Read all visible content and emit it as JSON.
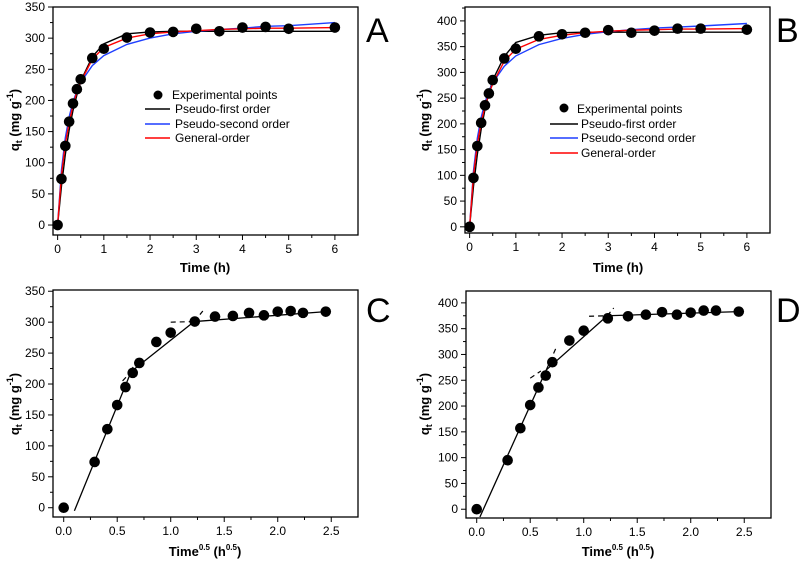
{
  "chart_data": [
    {
      "panel": "A",
      "type": "scatter+line",
      "xlabel": {
        "base": "Time (h)"
      },
      "ylabel": {
        "base": "q",
        "sub": "t",
        "unit": " (mg g",
        "sup": "-1",
        "close": ")"
      },
      "xlim": [
        -0.1,
        6.5
      ],
      "ylim": [
        -16,
        350
      ],
      "xticks": [
        "0",
        "1",
        "2",
        "3",
        "4",
        "5",
        "6"
      ],
      "xtick_values": [
        0,
        1,
        2,
        3,
        4,
        5,
        6
      ],
      "yticks": [
        "0",
        "50",
        "100",
        "150",
        "200",
        "250",
        "300",
        "350"
      ],
      "ytick_values": [
        0,
        50,
        100,
        150,
        200,
        250,
        300,
        350
      ],
      "legend": {
        "placement": "center",
        "entries": [
          "Experimental points",
          "Pseudo-first order",
          "Pseudo-second order",
          "General-order"
        ]
      },
      "x": [
        0,
        0.083,
        0.167,
        0.25,
        0.333,
        0.417,
        0.5,
        0.75,
        1,
        1.5,
        2,
        2.5,
        3,
        3.5,
        4,
        4.5,
        5,
        6
      ],
      "points": [
        0,
        74,
        127,
        166,
        195,
        218,
        234,
        268,
        283,
        301,
        309,
        310,
        315,
        311,
        317,
        318,
        315,
        317
      ],
      "series": [
        {
          "name": "Pseudo-first order",
          "color": "#000000",
          "values": [
            0,
            63,
            113,
            153,
            184,
            209,
            231,
            270,
            291,
            307,
            310,
            311,
            311,
            311,
            311,
            311,
            311,
            311
          ]
        },
        {
          "name": "Pseudo-second order",
          "color": "#1f3fff",
          "values": [
            0,
            89,
            140,
            174,
            198,
            215,
            229,
            256,
            272,
            290,
            300,
            307,
            311,
            314,
            316,
            319,
            320,
            325
          ]
        },
        {
          "name": "General-order",
          "color": "#ff0000",
          "values": [
            0,
            80,
            130,
            165,
            192,
            214,
            230,
            266,
            285,
            300,
            307,
            310,
            312,
            314,
            315,
            316,
            316,
            317
          ]
        }
      ]
    },
    {
      "panel": "B",
      "type": "scatter+line",
      "xlabel": {
        "base": "Time (h)"
      },
      "ylabel": {
        "base": "q",
        "sub": "t",
        "unit": " (mg g",
        "sup": "-1",
        "close": ")"
      },
      "xlim": [
        -0.1,
        6.5
      ],
      "ylim": [
        -12,
        427
      ],
      "xticks": [
        "0",
        "1",
        "2",
        "3",
        "4",
        "5",
        "6"
      ],
      "xtick_values": [
        0,
        1,
        2,
        3,
        4,
        5,
        6
      ],
      "yticks": [
        "0",
        "50",
        "100",
        "150",
        "200",
        "250",
        "300",
        "350",
        "400"
      ],
      "ytick_values": [
        0,
        50,
        100,
        150,
        200,
        250,
        300,
        350,
        400
      ],
      "legend": {
        "placement": "center",
        "entries": [
          "Experimental points",
          "Pseudo-first order",
          "Pseudo-second order",
          "General-order"
        ]
      },
      "x": [
        0,
        0.083,
        0.167,
        0.25,
        0.333,
        0.417,
        0.5,
        0.75,
        1,
        1.5,
        2,
        2.5,
        3,
        3.5,
        4,
        4.5,
        5,
        6
      ],
      "points": [
        0,
        95,
        157,
        202,
        236,
        259,
        285,
        327,
        346,
        370,
        374,
        377,
        382,
        377,
        381,
        385,
        385,
        383
      ],
      "series": [
        {
          "name": "Pseudo-first order",
          "color": "#000000",
          "values": [
            0,
            79,
            140,
            190,
            228,
            260,
            285,
            331,
            358,
            372,
            377,
            378,
            378,
            378,
            378,
            378,
            378,
            378
          ]
        },
        {
          "name": "Pseudo-second order",
          "color": "#1f3fff",
          "values": [
            0,
            109,
            172,
            213,
            242,
            263,
            280,
            312,
            332,
            354,
            366,
            374,
            379,
            383,
            386,
            388,
            390,
            395
          ]
        },
        {
          "name": "General-order",
          "color": "#ff0000",
          "values": [
            0,
            100,
            160,
            203,
            234,
            258,
            278,
            322,
            345,
            364,
            372,
            377,
            380,
            382,
            383,
            384,
            384,
            385
          ]
        }
      ]
    },
    {
      "panel": "C",
      "type": "scatter+line",
      "xlabel": {
        "base": "Time",
        "sup": "0.5",
        "unit": " (h",
        "sup2": "0.5",
        "close": ")"
      },
      "ylabel": {
        "base": "q",
        "sub": "t",
        "unit": " (mg g",
        "sup": "-1",
        "close": ")"
      },
      "xlim": [
        -0.1,
        2.75
      ],
      "ylim": [
        -15,
        352
      ],
      "xticks": [
        "0.0",
        "0.5",
        "1.0",
        "1.5",
        "2.0",
        "2.5"
      ],
      "xtick_values": [
        0,
        0.5,
        1,
        1.5,
        2,
        2.5
      ],
      "yticks": [
        "0",
        "50",
        "100",
        "150",
        "200",
        "250",
        "300",
        "350"
      ],
      "ytick_values": [
        0,
        50,
        100,
        150,
        200,
        250,
        300,
        350
      ],
      "x": [
        0,
        0.289,
        0.408,
        0.5,
        0.577,
        0.645,
        0.707,
        0.866,
        1,
        1.225,
        1.414,
        1.581,
        1.732,
        1.871,
        2,
        2.121,
        2.236,
        2.449
      ],
      "points": [
        0,
        74,
        127,
        166,
        195,
        218,
        234,
        268,
        283,
        301,
        309,
        310,
        315,
        311,
        317,
        318,
        315,
        317
      ],
      "fit_lines": [
        {
          "solid": [
            [
              0.1,
              -5
            ],
            [
              0.63,
              220
            ]
          ],
          "dashed": [
            [
              0.63,
              220
            ],
            [
              0.69,
              245
            ]
          ]
        },
        {
          "solid": [
            [
              0.63,
              220
            ],
            [
              1.22,
              301
            ]
          ],
          "dashed": [
            [
              0.55,
              205
            ],
            [
              0.63,
              220
            ],
            [
              1.22,
              301
            ],
            [
              1.3,
              318
            ]
          ]
        },
        {
          "solid": [
            [
              1.22,
              301
            ],
            [
              2.45,
              317
            ]
          ],
          "dashed": [
            [
              1.0,
              300
            ],
            [
              1.22,
              301
            ]
          ]
        }
      ]
    },
    {
      "panel": "D",
      "type": "scatter+line",
      "xlabel": {
        "base": "Time",
        "sup": "0.5",
        "unit": " (h",
        "sup2": "0.5",
        "close": ")"
      },
      "ylabel": {
        "base": "q",
        "sub": "t",
        "unit": " (mg g",
        "sup": "-1",
        "close": ")"
      },
      "xlim": [
        -0.1,
        2.75
      ],
      "ylim": [
        -17,
        423
      ],
      "xticks": [
        "0.0",
        "0.5",
        "1.0",
        "1.5",
        "2.0",
        "2.5"
      ],
      "xtick_values": [
        0,
        0.5,
        1,
        1.5,
        2,
        2.5
      ],
      "yticks": [
        "0",
        "50",
        "100",
        "150",
        "200",
        "250",
        "300",
        "350",
        "400"
      ],
      "ytick_values": [
        0,
        50,
        100,
        150,
        200,
        250,
        300,
        350,
        400
      ],
      "x": [
        0,
        0.289,
        0.408,
        0.5,
        0.577,
        0.645,
        0.707,
        0.866,
        1,
        1.225,
        1.414,
        1.581,
        1.732,
        1.871,
        2,
        2.121,
        2.236,
        2.449
      ],
      "points": [
        0,
        95,
        157,
        202,
        236,
        259,
        285,
        327,
        346,
        370,
        374,
        377,
        382,
        377,
        381,
        385,
        385,
        383
      ],
      "fit_lines": [
        {
          "solid": [
            [
              0.03,
              -15
            ],
            [
              0.65,
              270
            ]
          ],
          "dashed": [
            [
              0.65,
              270
            ],
            [
              0.74,
              312
            ]
          ]
        },
        {
          "solid": [
            [
              0.65,
              270
            ],
            [
              1.22,
              375
            ]
          ],
          "dashed": [
            [
              0.5,
              254
            ],
            [
              0.6,
              268
            ],
            [
              1.22,
              375
            ],
            [
              1.28,
              390
            ]
          ]
        },
        {
          "solid": [
            [
              1.22,
              375
            ],
            [
              2.45,
              383
            ]
          ],
          "dashed": [
            [
              1.05,
              374
            ],
            [
              1.22,
              375
            ]
          ]
        }
      ]
    }
  ]
}
